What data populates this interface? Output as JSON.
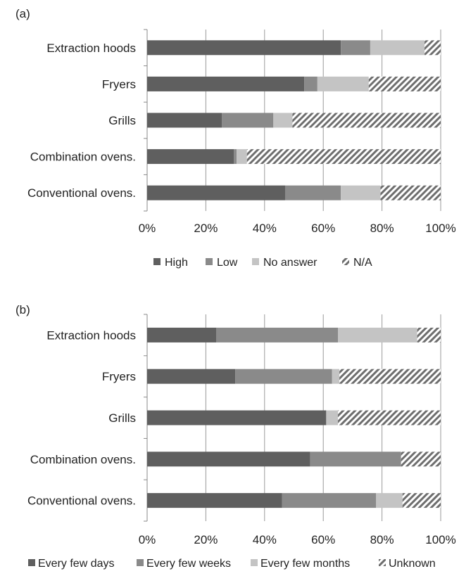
{
  "chart_data": [
    {
      "panel_label": "(a)",
      "type": "bar",
      "orientation": "horizontal",
      "stacked": true,
      "categories": [
        "Extraction hoods",
        "Fryers",
        "Grills",
        "Combination ovens.",
        "Conventional ovens."
      ],
      "series": [
        {
          "name": "High",
          "color": "#5f5f5f",
          "pattern": "solid",
          "values": [
            66,
            53.5,
            25.5,
            29.5,
            47
          ]
        },
        {
          "name": "Low",
          "color": "#8a8a8a",
          "pattern": "solid",
          "values": [
            10,
            4.5,
            17.5,
            1,
            19
          ]
        },
        {
          "name": "No answer",
          "color": "#c4c4c4",
          "pattern": "solid",
          "values": [
            18.5,
            17.5,
            6.5,
            3.5,
            13.5
          ]
        },
        {
          "name": "N/A",
          "color": "#6e6e6e",
          "pattern": "hatched",
          "values": [
            5.5,
            24.5,
            50.5,
            66,
            20.5
          ]
        }
      ],
      "xlim": [
        0,
        100
      ],
      "x_ticks": [
        "0%",
        "20%",
        "40%",
        "60%",
        "80%",
        "100%"
      ],
      "grid": "vertical",
      "legend": "bottom"
    },
    {
      "panel_label": "(b)",
      "type": "bar",
      "orientation": "horizontal",
      "stacked": true,
      "categories": [
        "Extraction hoods",
        "Fryers",
        "Grills",
        "Combination ovens.",
        "Conventional ovens."
      ],
      "series": [
        {
          "name": "Every few days",
          "color": "#5f5f5f",
          "pattern": "solid",
          "values": [
            23.5,
            30,
            61,
            55.5,
            46
          ]
        },
        {
          "name": "Every few weeks",
          "color": "#8a8a8a",
          "pattern": "solid",
          "values": [
            41.5,
            33,
            0,
            31,
            32
          ]
        },
        {
          "name": "Every few months",
          "color": "#c4c4c4",
          "pattern": "solid",
          "values": [
            27,
            2.5,
            4,
            0,
            9
          ]
        },
        {
          "name": "Unknown",
          "color": "#6e6e6e",
          "pattern": "hatched",
          "values": [
            8,
            34.5,
            35,
            13.5,
            13
          ]
        }
      ],
      "xlim": [
        0,
        100
      ],
      "x_ticks": [
        "0%",
        "20%",
        "40%",
        "60%",
        "80%",
        "100%"
      ],
      "grid": "vertical",
      "legend": "bottom"
    }
  ]
}
